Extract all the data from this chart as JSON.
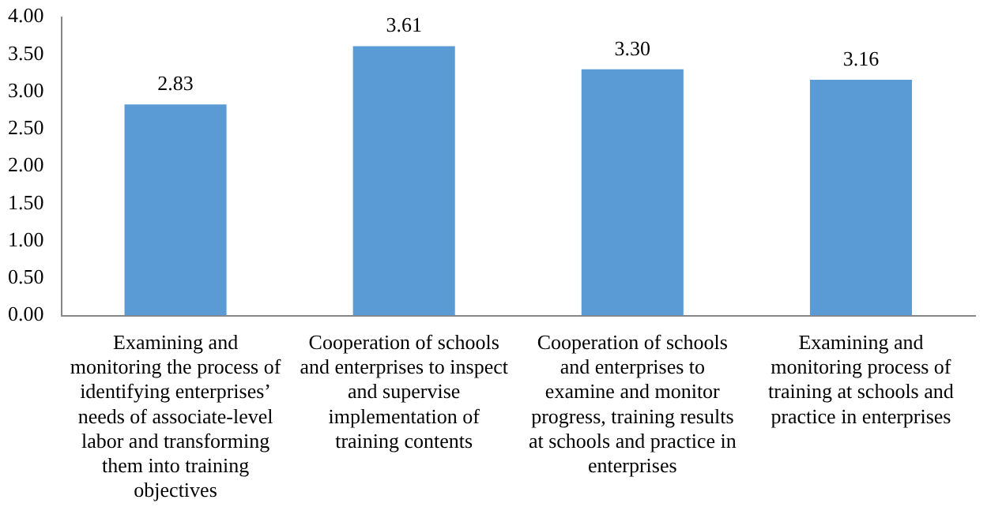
{
  "chart_data": {
    "type": "bar",
    "categories": [
      "Examining and monitoring the process of identifying enterprises’ needs of associate-level labor and transforming them into training objectives",
      "Cooperation of schools and enterprises to inspect and supervise implementation of training contents",
      "Cooperation of schools and enterprises to examine and monitor progress, training results at schools and practice in enterprises",
      "Examining and monitoring process of training at schools and practice in enterprises"
    ],
    "values": [
      2.83,
      3.61,
      3.3,
      3.16
    ],
    "value_labels": [
      "2.83",
      "3.61",
      "3.30",
      "3.16"
    ],
    "color": "#5b9bd5",
    "ylim": [
      0,
      4
    ],
    "yticks": [
      {
        "value": 0,
        "label": "0.00"
      },
      {
        "value": 0.5,
        "label": "0.50"
      },
      {
        "value": 1,
        "label": "1.00"
      },
      {
        "value": 1.5,
        "label": "1.50"
      },
      {
        "value": 2,
        "label": "2.00"
      },
      {
        "value": 2.5,
        "label": "2.50"
      },
      {
        "value": 3,
        "label": "3.00"
      },
      {
        "value": 3.5,
        "label": "3.50"
      },
      {
        "value": 4,
        "label": "4.00"
      }
    ],
    "grid": false,
    "legend": false
  }
}
